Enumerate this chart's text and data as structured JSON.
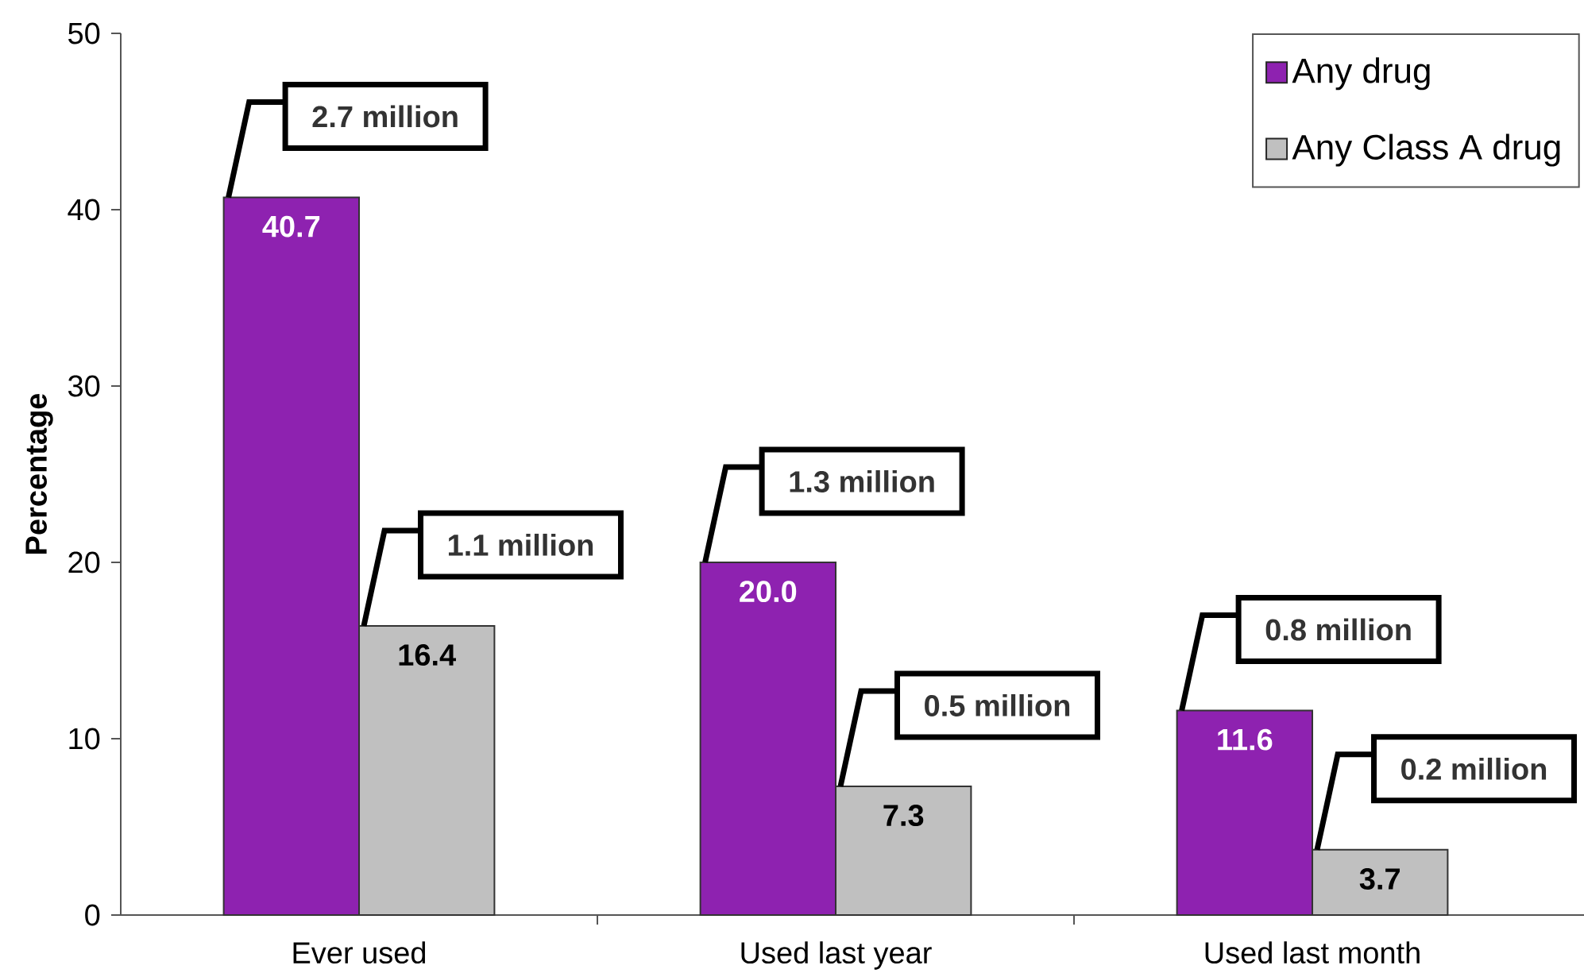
{
  "chart_data": {
    "type": "bar",
    "ylabel": "Percentage",
    "categories": [
      "Ever used",
      "Used last year",
      "Used last month"
    ],
    "series": [
      {
        "name": "Any drug",
        "color": "#8e22b0",
        "values": [
          40.7,
          20.0,
          11.6
        ],
        "value_labels": [
          "40.7",
          "20.0",
          "11.6"
        ]
      },
      {
        "name": "Any Class A drug",
        "color": "#c0c0c0",
        "values": [
          16.4,
          7.3,
          3.7
        ],
        "value_labels": [
          "16.4",
          "7.3",
          "3.7"
        ]
      }
    ],
    "ylim": [
      0,
      50
    ],
    "yticks": [
      0,
      10,
      20,
      30,
      40,
      50
    ],
    "legend": "top right",
    "annotations": [
      {
        "text": "2.7 million",
        "x": "Ever used",
        "y": 40.7
      },
      {
        "text": "1.1 million",
        "x": "Ever used",
        "y": 16.4
      },
      {
        "text": "1.3 million",
        "x": "Used last year",
        "y": 20.0
      },
      {
        "text": "0.5 million",
        "x": "Used last year",
        "y": 7.3
      },
      {
        "text": "0.8 million",
        "x": "Used last month",
        "y": 11.6
      },
      {
        "text": "0.2 million",
        "x": "Used last month",
        "y": 3.7
      }
    ]
  }
}
